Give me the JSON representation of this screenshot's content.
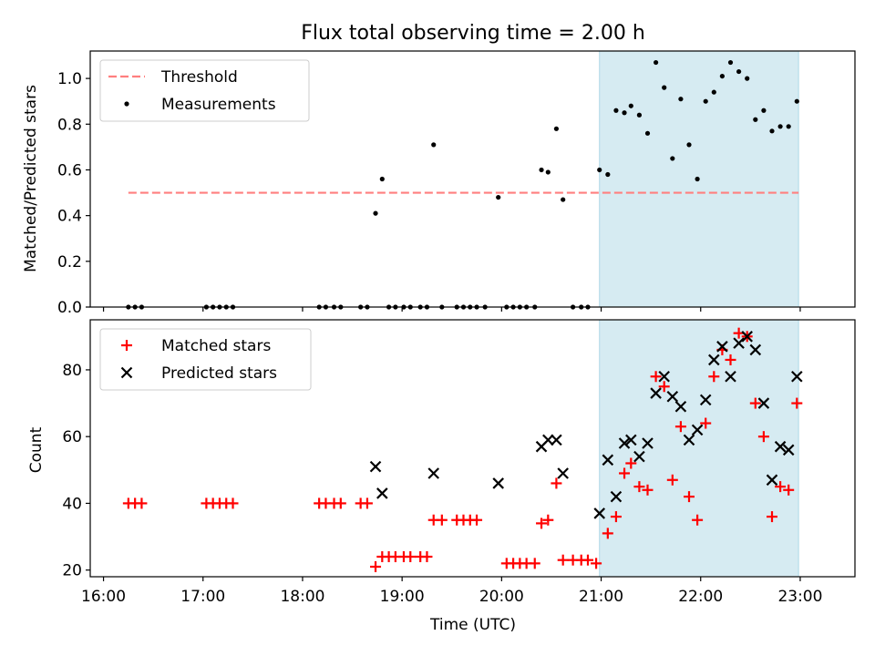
{
  "figure": {
    "title": "Flux total observing time = 2.00 h",
    "xlabel": "Time (UTC)",
    "x_ticks": [
      "16:00",
      "17:00",
      "18:00",
      "19:00",
      "20:00",
      "21:00",
      "22:00",
      "23:00"
    ]
  },
  "colors": {
    "threshold": "#ff7f7f",
    "measurement": "#000000",
    "matched": "#ff0000",
    "predicted": "#000000",
    "shade": "#add8e6"
  },
  "chart_data": [
    {
      "type": "scatter",
      "panel": "top",
      "ylabel": "Matched/Predicted stars",
      "xlim": [
        "15:52",
        "23:33"
      ],
      "ylim": [
        0,
        1.12
      ],
      "y_ticks": [
        "0.0",
        "0.2",
        "0.4",
        "0.6",
        "0.8",
        "1.0"
      ],
      "shaded_region": {
        "start": "20:59",
        "end": "22:59"
      },
      "legend_position": "top-left",
      "threshold": {
        "name": "Threshold",
        "value": 0.5,
        "x_start": "16:15",
        "x_end": "22:59"
      },
      "series": [
        {
          "name": "Measurements",
          "points": [
            [
              "16:15",
              0
            ],
            [
              "16:19",
              0
            ],
            [
              "16:23",
              0
            ],
            [
              "17:02",
              0
            ],
            [
              "17:06",
              0
            ],
            [
              "17:10",
              0
            ],
            [
              "17:14",
              0
            ],
            [
              "17:18",
              0
            ],
            [
              "18:10",
              0
            ],
            [
              "18:14",
              0
            ],
            [
              "18:19",
              0
            ],
            [
              "18:23",
              0
            ],
            [
              "18:35",
              0
            ],
            [
              "18:39",
              0
            ],
            [
              "18:44",
              0.41
            ],
            [
              "18:48",
              0.56
            ],
            [
              "18:52",
              0
            ],
            [
              "18:56",
              0
            ],
            [
              "19:01",
              0
            ],
            [
              "19:05",
              0
            ],
            [
              "19:11",
              0
            ],
            [
              "19:15",
              0
            ],
            [
              "19:19",
              0.71
            ],
            [
              "19:24",
              0
            ],
            [
              "19:33",
              0
            ],
            [
              "19:37",
              0
            ],
            [
              "19:41",
              0
            ],
            [
              "19:45",
              0
            ],
            [
              "19:50",
              0
            ],
            [
              "19:58",
              0.48
            ],
            [
              "20:03",
              0
            ],
            [
              "20:07",
              0
            ],
            [
              "20:11",
              0
            ],
            [
              "20:15",
              0
            ],
            [
              "20:20",
              0
            ],
            [
              "20:24",
              0.6
            ],
            [
              "20:28",
              0.59
            ],
            [
              "20:33",
              0.78
            ],
            [
              "20:37",
              0.47
            ],
            [
              "20:43",
              0
            ],
            [
              "20:48",
              0
            ],
            [
              "20:52",
              0
            ],
            [
              "20:59",
              0.6
            ],
            [
              "21:04",
              0.58
            ],
            [
              "21:09",
              0.86
            ],
            [
              "21:14",
              0.85
            ],
            [
              "21:18",
              0.88
            ],
            [
              "21:23",
              0.84
            ],
            [
              "21:28",
              0.76
            ],
            [
              "21:33",
              1.07
            ],
            [
              "21:38",
              0.96
            ],
            [
              "21:43",
              0.65
            ],
            [
              "21:48",
              0.91
            ],
            [
              "21:53",
              0.71
            ],
            [
              "21:58",
              0.56
            ],
            [
              "22:03",
              0.9
            ],
            [
              "22:08",
              0.94
            ],
            [
              "22:13",
              1.01
            ],
            [
              "22:18",
              1.07
            ],
            [
              "22:23",
              1.03
            ],
            [
              "22:28",
              1.0
            ],
            [
              "22:33",
              0.82
            ],
            [
              "22:38",
              0.86
            ],
            [
              "22:43",
              0.77
            ],
            [
              "22:48",
              0.79
            ],
            [
              "22:53",
              0.79
            ],
            [
              "22:58",
              0.9
            ]
          ]
        }
      ]
    },
    {
      "type": "scatter",
      "panel": "bottom",
      "ylabel": "Count",
      "xlabel": "Time (UTC)",
      "xlim": [
        "15:52",
        "23:33"
      ],
      "ylim": [
        18,
        95
      ],
      "y_ticks": [
        "20",
        "40",
        "60",
        "80"
      ],
      "shaded_region": {
        "start": "20:59",
        "end": "22:59"
      },
      "legend_position": "top-left",
      "series": [
        {
          "name": "Matched stars",
          "marker": "plus",
          "points": [
            [
              "16:15",
              40
            ],
            [
              "16:19",
              40
            ],
            [
              "16:23",
              40
            ],
            [
              "17:02",
              40
            ],
            [
              "17:06",
              40
            ],
            [
              "17:10",
              40
            ],
            [
              "17:14",
              40
            ],
            [
              "17:18",
              40
            ],
            [
              "18:10",
              40
            ],
            [
              "18:14",
              40
            ],
            [
              "18:19",
              40
            ],
            [
              "18:23",
              40
            ],
            [
              "18:35",
              40
            ],
            [
              "18:39",
              40
            ],
            [
              "18:44",
              21
            ],
            [
              "18:48",
              24
            ],
            [
              "18:52",
              24
            ],
            [
              "18:56",
              24
            ],
            [
              "19:01",
              24
            ],
            [
              "19:05",
              24
            ],
            [
              "19:11",
              24
            ],
            [
              "19:15",
              24
            ],
            [
              "19:19",
              35
            ],
            [
              "19:24",
              35
            ],
            [
              "19:33",
              35
            ],
            [
              "19:37",
              35
            ],
            [
              "19:41",
              35
            ],
            [
              "19:45",
              35
            ],
            [
              "20:03",
              22
            ],
            [
              "20:07",
              22
            ],
            [
              "20:11",
              22
            ],
            [
              "20:15",
              22
            ],
            [
              "20:20",
              22
            ],
            [
              "20:24",
              34
            ],
            [
              "20:28",
              35
            ],
            [
              "20:33",
              46
            ],
            [
              "20:37",
              23
            ],
            [
              "20:43",
              23
            ],
            [
              "20:48",
              23
            ],
            [
              "20:52",
              23
            ],
            [
              "20:57",
              22
            ],
            [
              "21:04",
              31
            ],
            [
              "21:09",
              36
            ],
            [
              "21:14",
              49
            ],
            [
              "21:18",
              52
            ],
            [
              "21:23",
              45
            ],
            [
              "21:28",
              44
            ],
            [
              "21:33",
              78
            ],
            [
              "21:38",
              75
            ],
            [
              "21:43",
              47
            ],
            [
              "21:48",
              63
            ],
            [
              "21:53",
              42
            ],
            [
              "21:58",
              35
            ],
            [
              "22:03",
              64
            ],
            [
              "22:08",
              78
            ],
            [
              "22:13",
              86
            ],
            [
              "22:18",
              83
            ],
            [
              "22:23",
              91
            ],
            [
              "22:28",
              90
            ],
            [
              "22:33",
              70
            ],
            [
              "22:38",
              60
            ],
            [
              "22:43",
              36
            ],
            [
              "22:48",
              45
            ],
            [
              "22:53",
              44
            ],
            [
              "22:58",
              70
            ]
          ]
        },
        {
          "name": "Predicted stars",
          "marker": "x",
          "points": [
            [
              "18:44",
              51
            ],
            [
              "18:48",
              43
            ],
            [
              "19:19",
              49
            ],
            [
              "19:58",
              46
            ],
            [
              "20:24",
              57
            ],
            [
              "20:28",
              59
            ],
            [
              "20:33",
              59
            ],
            [
              "20:37",
              49
            ],
            [
              "20:59",
              37
            ],
            [
              "21:04",
              53
            ],
            [
              "21:09",
              42
            ],
            [
              "21:14",
              58
            ],
            [
              "21:18",
              59
            ],
            [
              "21:23",
              54
            ],
            [
              "21:28",
              58
            ],
            [
              "21:33",
              73
            ],
            [
              "21:38",
              78
            ],
            [
              "21:43",
              72
            ],
            [
              "21:48",
              69
            ],
            [
              "21:53",
              59
            ],
            [
              "21:58",
              62
            ],
            [
              "22:03",
              71
            ],
            [
              "22:08",
              83
            ],
            [
              "22:13",
              87
            ],
            [
              "22:18",
              78
            ],
            [
              "22:23",
              88
            ],
            [
              "22:28",
              90
            ],
            [
              "22:33",
              86
            ],
            [
              "22:38",
              70
            ],
            [
              "22:43",
              47
            ],
            [
              "22:48",
              57
            ],
            [
              "22:53",
              56
            ],
            [
              "22:58",
              78
            ]
          ]
        }
      ]
    }
  ]
}
